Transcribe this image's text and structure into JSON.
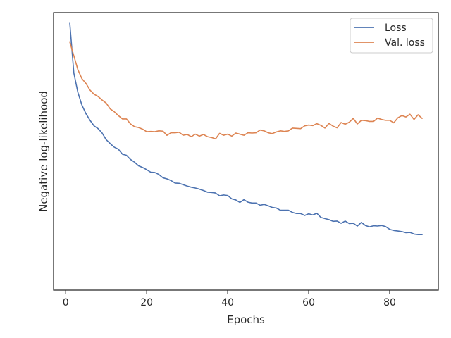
{
  "chart_data": {
    "type": "line",
    "xlabel": "Epochs",
    "ylabel": "Negative log-likelihood",
    "xlim": [
      -3,
      92
    ],
    "ylim": [
      0,
      1
    ],
    "x_ticks": [
      0,
      20,
      40,
      60,
      80
    ],
    "y_ticks_labeled": false,
    "grid": false,
    "legend_position": "top-right",
    "series": [
      {
        "name": "Loss",
        "color": "#4c72b0",
        "x": [
          1,
          2,
          3,
          4,
          5,
          6,
          7,
          8,
          9,
          10,
          11,
          12,
          13,
          14,
          15,
          16,
          17,
          18,
          19,
          20,
          21,
          22,
          23,
          24,
          25,
          26,
          27,
          28,
          29,
          30,
          31,
          32,
          33,
          34,
          35,
          36,
          37,
          38,
          39,
          40,
          41,
          42,
          43,
          44,
          45,
          46,
          47,
          48,
          49,
          50,
          51,
          52,
          53,
          54,
          55,
          56,
          57,
          58,
          59,
          60,
          61,
          62,
          63,
          64,
          65,
          66,
          67,
          68,
          69,
          70,
          71,
          72,
          73,
          74,
          75,
          76,
          77,
          78,
          79,
          80,
          81,
          82,
          83,
          84,
          85,
          86,
          87,
          88
        ],
        "y": [
          0.964,
          0.783,
          0.713,
          0.667,
          0.636,
          0.612,
          0.592,
          0.582,
          0.566,
          0.542,
          0.528,
          0.515,
          0.508,
          0.49,
          0.486,
          0.471,
          0.461,
          0.448,
          0.442,
          0.434,
          0.425,
          0.424,
          0.417,
          0.405,
          0.401,
          0.395,
          0.386,
          0.385,
          0.38,
          0.375,
          0.371,
          0.368,
          0.364,
          0.359,
          0.353,
          0.352,
          0.35,
          0.34,
          0.343,
          0.341,
          0.329,
          0.325,
          0.316,
          0.326,
          0.317,
          0.314,
          0.314,
          0.306,
          0.309,
          0.304,
          0.298,
          0.296,
          0.288,
          0.288,
          0.288,
          0.28,
          0.276,
          0.276,
          0.269,
          0.275,
          0.271,
          0.277,
          0.262,
          0.258,
          0.254,
          0.248,
          0.249,
          0.241,
          0.249,
          0.24,
          0.241,
          0.231,
          0.244,
          0.233,
          0.228,
          0.232,
          0.231,
          0.233,
          0.229,
          0.219,
          0.215,
          0.213,
          0.211,
          0.207,
          0.208,
          0.202,
          0.2,
          0.2
        ]
      },
      {
        "name": "Val. loss",
        "color": "#dd8452",
        "x": [
          1,
          2,
          3,
          4,
          5,
          6,
          7,
          8,
          9,
          10,
          11,
          12,
          13,
          14,
          15,
          16,
          17,
          18,
          19,
          20,
          21,
          22,
          23,
          24,
          25,
          26,
          27,
          28,
          29,
          30,
          31,
          32,
          33,
          34,
          35,
          36,
          37,
          38,
          39,
          40,
          41,
          42,
          43,
          44,
          45,
          46,
          47,
          48,
          49,
          50,
          51,
          52,
          53,
          54,
          55,
          56,
          57,
          58,
          59,
          60,
          61,
          62,
          63,
          64,
          65,
          66,
          67,
          68,
          69,
          70,
          71,
          72,
          73,
          74,
          75,
          76,
          77,
          78,
          79,
          80,
          81,
          82,
          83,
          84,
          85,
          86,
          87,
          88
        ],
        "y": [
          0.895,
          0.845,
          0.795,
          0.762,
          0.745,
          0.721,
          0.706,
          0.698,
          0.685,
          0.674,
          0.653,
          0.643,
          0.629,
          0.617,
          0.617,
          0.599,
          0.589,
          0.586,
          0.58,
          0.571,
          0.572,
          0.571,
          0.574,
          0.573,
          0.558,
          0.567,
          0.567,
          0.569,
          0.558,
          0.561,
          0.553,
          0.562,
          0.555,
          0.561,
          0.553,
          0.55,
          0.545,
          0.565,
          0.558,
          0.562,
          0.555,
          0.566,
          0.562,
          0.558,
          0.567,
          0.566,
          0.567,
          0.577,
          0.574,
          0.567,
          0.564,
          0.57,
          0.574,
          0.572,
          0.574,
          0.584,
          0.583,
          0.582,
          0.592,
          0.595,
          0.593,
          0.6,
          0.594,
          0.584,
          0.601,
          0.591,
          0.585,
          0.604,
          0.598,
          0.605,
          0.619,
          0.599,
          0.612,
          0.611,
          0.608,
          0.608,
          0.62,
          0.615,
          0.612,
          0.612,
          0.603,
          0.621,
          0.629,
          0.624,
          0.634,
          0.615,
          0.632,
          0.619
        ]
      }
    ]
  }
}
